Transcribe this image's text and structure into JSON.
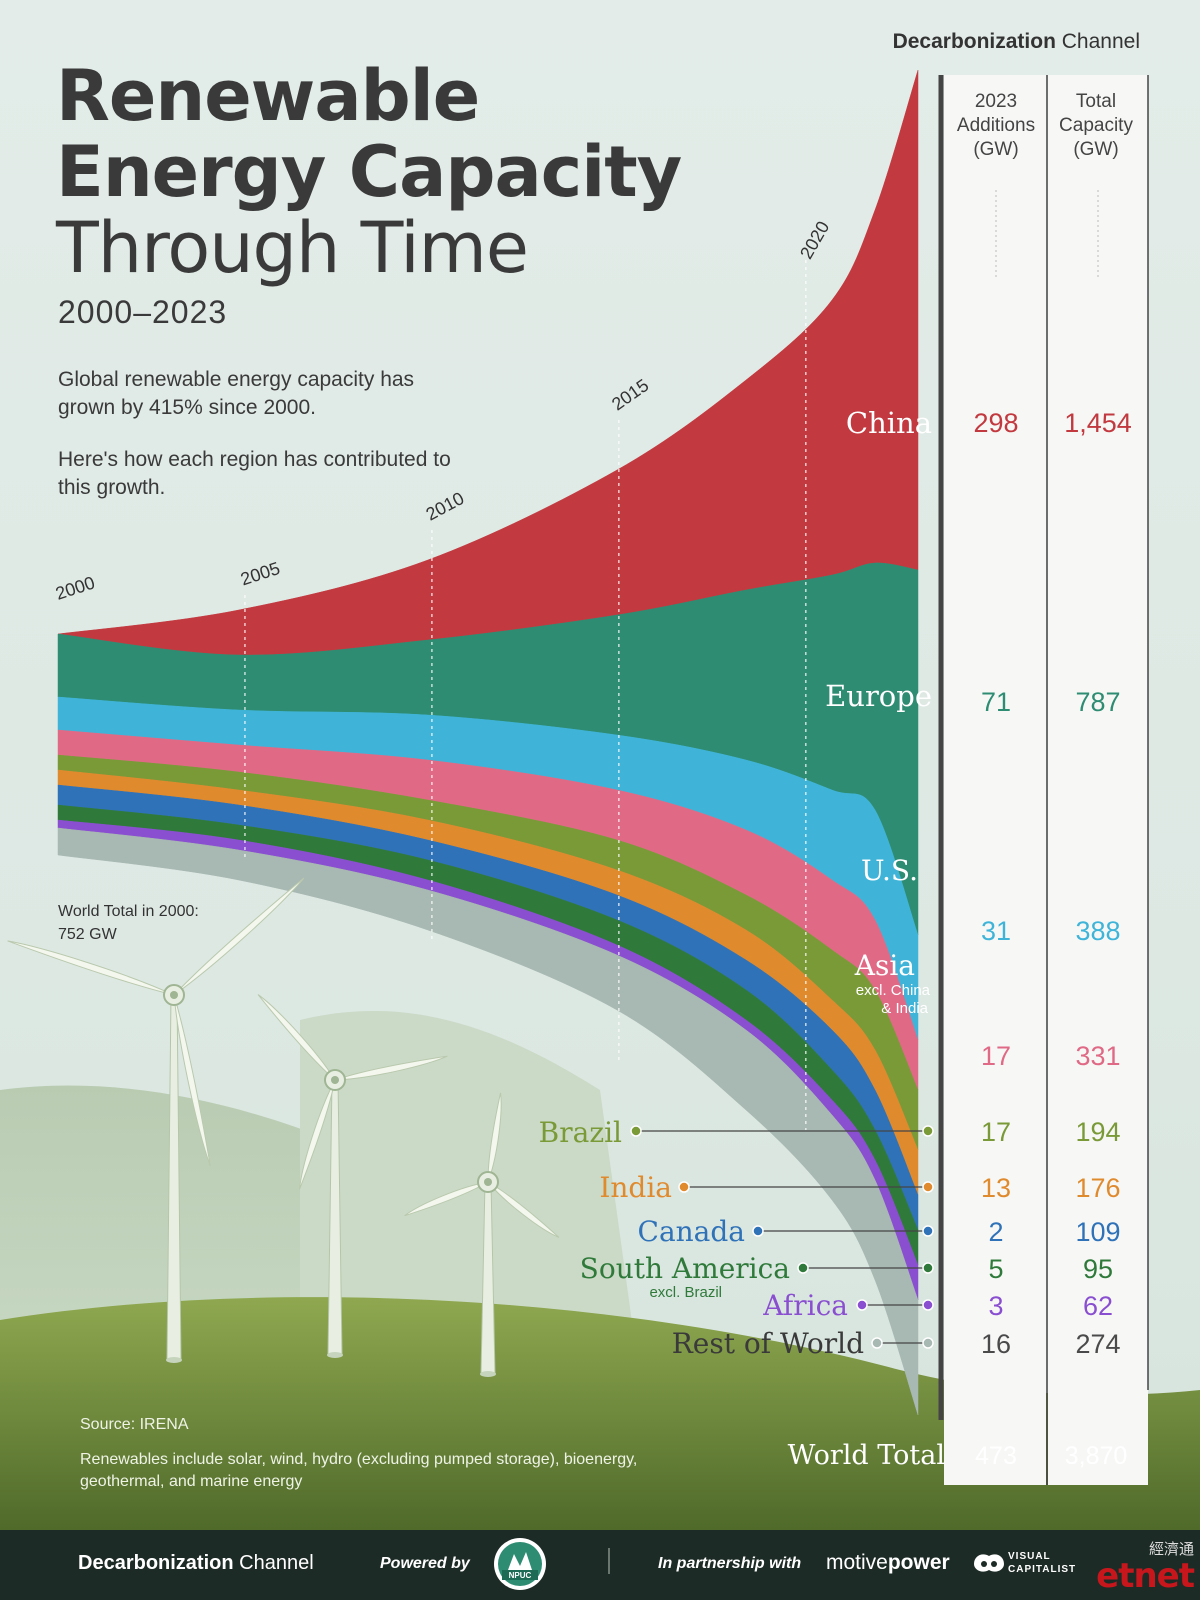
{
  "header": {
    "brand_bold": "Decarbonization",
    "brand_light": "Channel",
    "title_line1": "Renewable",
    "title_line2": "Energy Capacity",
    "title_line3": "Through Time",
    "subtitle": "2000–2023",
    "desc1": "Global renewable energy capacity has grown by 415% since 2000.",
    "desc2": "Here's how each region has contributed to this growth."
  },
  "annotation": {
    "world_total_2000": "World Total in 2000: 752 GW"
  },
  "table": {
    "col1_header": "2023 Additions (GW)",
    "col2_header": "Total Capacity (GW)",
    "world_label": "World Total",
    "world_additions": "473",
    "world_total": "3,870"
  },
  "notes": {
    "source": "Source: IRENA",
    "note": "Renewables include solar, wind, hydro (excluding pumped storage), bioenergy, geothermal, and marine energy"
  },
  "footer": {
    "brand_bold": "Decarbonization",
    "brand_light": "Channel",
    "powered": "Powered by",
    "npuc": "NPUC",
    "partner": "In partnership with",
    "motive_light": "motive",
    "motive_bold": "power",
    "vc_line1": "VISUAL",
    "vc_line2": "CAPITALIST",
    "etnet_cjk": "經濟通",
    "etnet": "etnet"
  },
  "chart_data": {
    "type": "area",
    "stacked": true,
    "unit": "GW",
    "x_ticks": [
      "2000",
      "2005",
      "2010",
      "2015",
      "2020"
    ],
    "x_range": [
      2000,
      2023
    ],
    "world_total_2000_gw": 752,
    "series": [
      {
        "name": "China",
        "color": "#c23a40",
        "additions_2023": 298,
        "total_2023": 1454,
        "additions_label": "298",
        "total_label": "1,454"
      },
      {
        "name": "Europe",
        "color": "#2e8c72",
        "additions_2023": 71,
        "total_2023": 787,
        "additions_label": "71",
        "total_label": "787"
      },
      {
        "name": "U.S.",
        "color": "#3fb4d8",
        "additions_2023": 31,
        "total_2023": 388,
        "additions_label": "31",
        "total_label": "388"
      },
      {
        "name": "Asia",
        "sub": "excl. China & India",
        "color": "#e06a86",
        "additions_2023": 17,
        "total_2023": 331,
        "additions_label": "17",
        "total_label": "331"
      },
      {
        "name": "Brazil",
        "color": "#7a9a38",
        "additions_2023": 17,
        "total_2023": 194,
        "additions_label": "17",
        "total_label": "194"
      },
      {
        "name": "India",
        "color": "#e08a2e",
        "additions_2023": 13,
        "total_2023": 176,
        "additions_label": "13",
        "total_label": "176"
      },
      {
        "name": "Canada",
        "color": "#2f72b8",
        "additions_2023": 2,
        "total_2023": 109,
        "additions_label": "2",
        "total_label": "109"
      },
      {
        "name": "South America",
        "sub": "excl. Brazil",
        "color": "#2f7a3a",
        "additions_2023": 5,
        "total_2023": 95,
        "additions_label": "5",
        "total_label": "95"
      },
      {
        "name": "Africa",
        "color": "#8a4fd0",
        "additions_2023": 3,
        "total_2023": 62,
        "additions_label": "3",
        "total_label": "62"
      },
      {
        "name": "Rest of World",
        "color": "#a8b8b2",
        "additions_2023": 16,
        "total_2023": 274,
        "additions_label": "16",
        "total_label": "274"
      }
    ],
    "world_total_2023": 3870,
    "world_additions_2023": 473
  }
}
